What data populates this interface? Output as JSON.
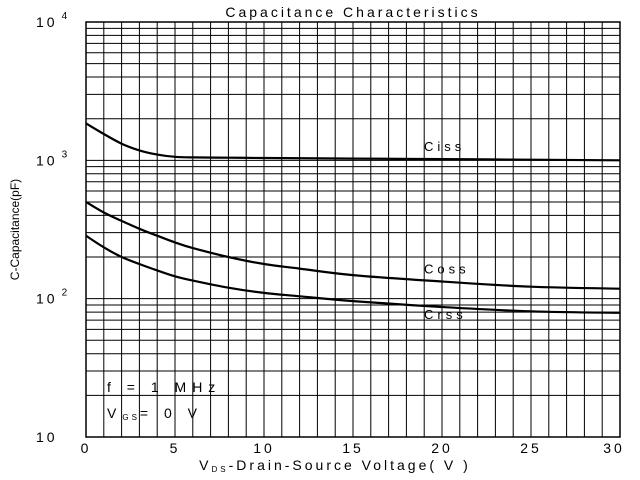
{
  "chart_data": {
    "type": "line",
    "title": "Capacitance Characteristics",
    "xlabel": "-Drain-Source Voltage( V )",
    "xlabel_symbol": "V",
    "xlabel_symbol_sub": "DS",
    "ylabel": "C-Capacitance(pF)",
    "xlim": [
      0,
      30
    ],
    "ylim": [
      10,
      10000
    ],
    "yscale": "log",
    "grid": true,
    "x_ticks": [
      0,
      5,
      10,
      15,
      20,
      25,
      30
    ],
    "x_tick_labels": [
      "0",
      "5",
      "10",
      "15",
      "20",
      "25",
      "30"
    ],
    "y_ticks": [
      {
        "value": 10,
        "base": "10",
        "exp": ""
      },
      {
        "value": 100,
        "base": "10",
        "exp": "2"
      },
      {
        "value": 1000,
        "base": "10",
        "exp": "3"
      },
      {
        "value": 10000,
        "base": "10",
        "exp": "4"
      }
    ],
    "series": [
      {
        "name": "Ciss",
        "x": [
          0,
          1,
          2,
          3,
          4,
          5,
          6,
          8,
          10,
          15,
          20,
          25,
          30
        ],
        "values": [
          1850,
          1550,
          1320,
          1180,
          1100,
          1060,
          1050,
          1045,
          1040,
          1030,
          1020,
          1010,
          1000
        ]
      },
      {
        "name": "Coss",
        "x": [
          0,
          1,
          2,
          3,
          4,
          5,
          6,
          8,
          10,
          12,
          15,
          20,
          25,
          30
        ],
        "values": [
          500,
          420,
          365,
          320,
          285,
          255,
          232,
          200,
          178,
          165,
          148,
          133,
          122,
          118
        ]
      },
      {
        "name": "Crss",
        "x": [
          0,
          1,
          2,
          3,
          4,
          5,
          6,
          8,
          10,
          12,
          15,
          20,
          25,
          30
        ],
        "values": [
          285,
          235,
          200,
          178,
          160,
          145,
          135,
          120,
          110,
          104,
          96,
          87,
          81,
          79
        ]
      }
    ],
    "conditions": {
      "freq_prefix": "f =",
      "freq_value": "1 MHz",
      "vgs_symbol": "V",
      "vgs_sub": "GS",
      "vgs_value": "= 0 V"
    }
  }
}
